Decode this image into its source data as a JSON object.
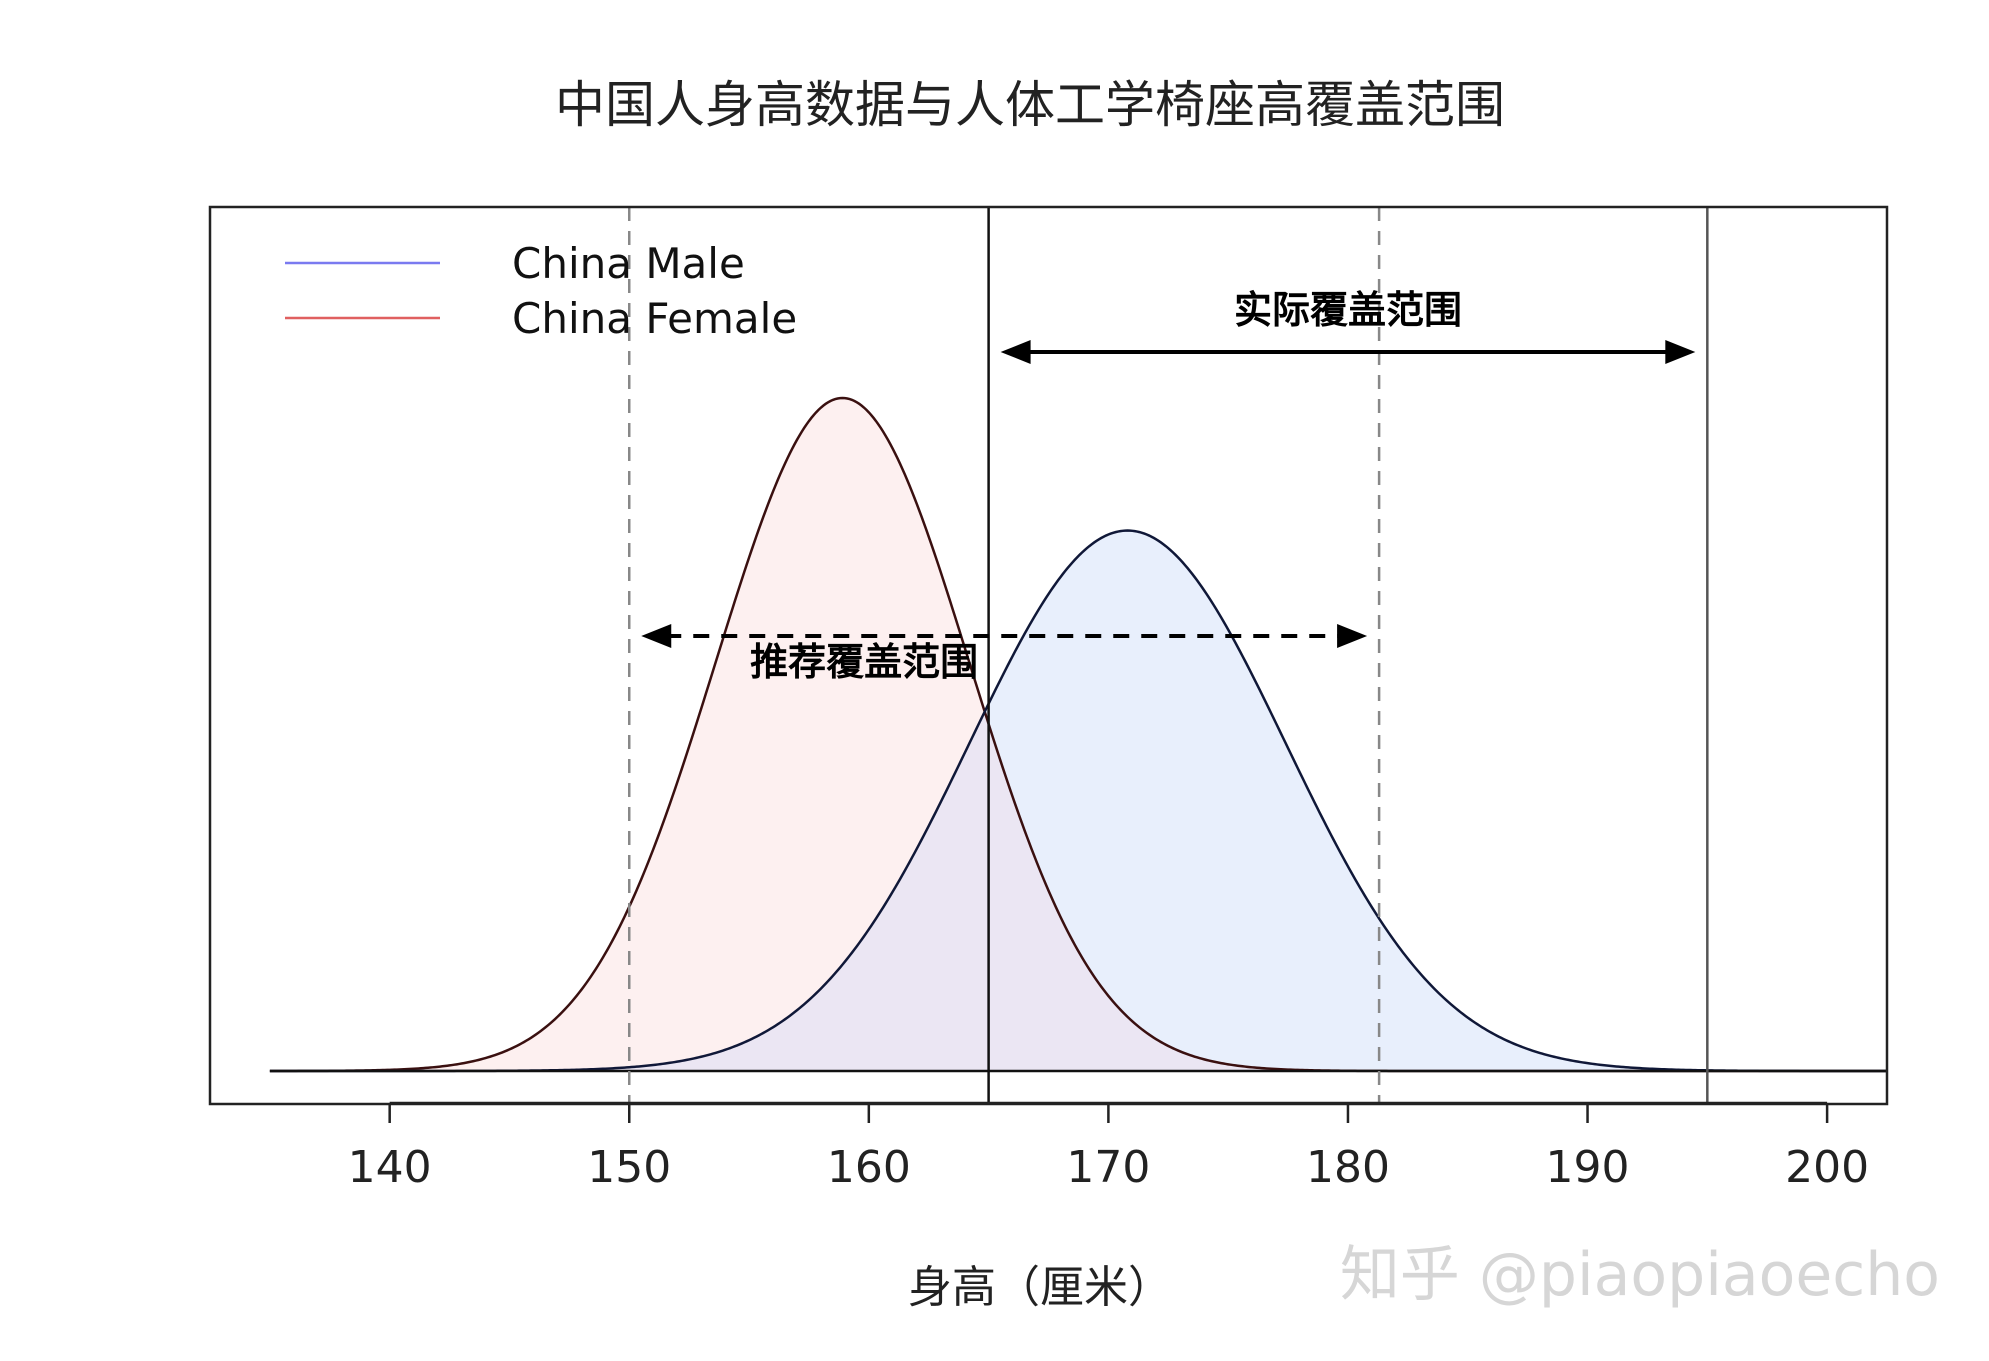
{
  "chart_data": {
    "type": "area",
    "title": "中国人身高数据与人体工学椅座高覆盖范围",
    "xlabel": "身高（厘米）",
    "ylabel": "",
    "xlim": [
      132.5,
      202.5
    ],
    "x_ticks": [
      "140",
      "150",
      "160",
      "170",
      "180",
      "190",
      "200"
    ],
    "x_tick_values": [
      140,
      150,
      160,
      170,
      180,
      190,
      200
    ],
    "grid": false,
    "legend_position": "top-left",
    "series": [
      {
        "name": "China Female",
        "distribution": "normal",
        "mean": 158.9,
        "sd": 5.3,
        "line_color": "#3a1010",
        "fill_color": "#fdf0f0",
        "legend_color": "#e06060"
      },
      {
        "name": "China Male",
        "distribution": "normal",
        "mean": 170.8,
        "sd": 6.6,
        "line_color": "#101838",
        "fill_color": "#e8effc",
        "legend_color": "#7a7af0"
      }
    ],
    "overlap_fill_color": "#ebe6f3",
    "x_range": [
      135,
      202.5
    ],
    "reference_lines": [
      {
        "x": 150,
        "style": "dashed",
        "color": "#888888"
      },
      {
        "x": 181.3,
        "style": "dashed",
        "color": "#888888"
      },
      {
        "x": 165,
        "style": "solid",
        "color": "#111111"
      },
      {
        "x": 195,
        "style": "solid",
        "color": "#555555"
      }
    ],
    "annotations": [
      {
        "text": "实际覆盖范围",
        "from": 165,
        "to": 195,
        "style": "solid"
      },
      {
        "text": "推荐覆盖范围",
        "from": 150,
        "to": 181.3,
        "style": "dashed"
      }
    ]
  },
  "watermark": "知乎 @piaopiaoecho"
}
